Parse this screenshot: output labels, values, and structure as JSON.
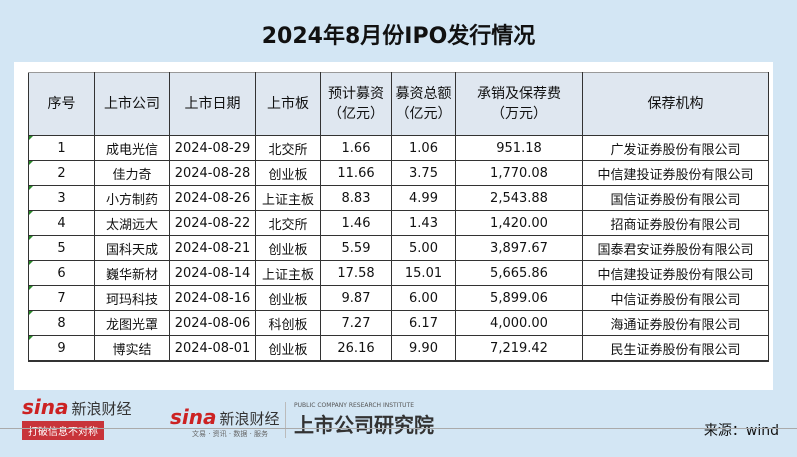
{
  "title": "2024年8月份IPO发行情况",
  "table": {
    "headers": [
      "序号",
      "上市公司",
      "上市日期",
      "上市板",
      "预计募资\n（亿元）",
      "募资总额\n（亿元）",
      "承销及保荐费\n（万元）",
      "保荐机构"
    ],
    "rows": [
      [
        "1",
        "成电光信",
        "2024-08-29",
        "北交所",
        "1.66",
        "1.06",
        "951.18",
        "广发证券股份有限公司"
      ],
      [
        "2",
        "佳力奇",
        "2024-08-28",
        "创业板",
        "11.66",
        "3.75",
        "1,770.08",
        "中信建投证券股份有限公司"
      ],
      [
        "3",
        "小方制药",
        "2024-08-26",
        "上证主板",
        "8.83",
        "4.99",
        "2,543.88",
        "国信证券股份有限公司"
      ],
      [
        "4",
        "太湖远大",
        "2024-08-22",
        "北交所",
        "1.46",
        "1.43",
        "1,420.00",
        "招商证券股份有限公司"
      ],
      [
        "5",
        "国科天成",
        "2024-08-21",
        "创业板",
        "5.59",
        "5.00",
        "3,897.67",
        "国泰君安证券股份有限公司"
      ],
      [
        "6",
        "巍华新材",
        "2024-08-14",
        "上证主板",
        "17.58",
        "15.01",
        "5,665.86",
        "中信建投证券股份有限公司"
      ],
      [
        "7",
        "珂玛科技",
        "2024-08-16",
        "创业板",
        "9.87",
        "6.00",
        "5,899.06",
        "中信证券股份有限公司"
      ],
      [
        "8",
        "龙图光罩",
        "2024-08-06",
        "科创板",
        "7.27",
        "6.17",
        "4,000.00",
        "海通证券股份有限公司"
      ],
      [
        "9",
        "博实结",
        "2024-08-01",
        "创业板",
        "26.16",
        "9.90",
        "7,219.42",
        "民生证券股份有限公司"
      ]
    ]
  },
  "footer": {
    "logo1_brand": "sina",
    "logo1_name": "新浪财经",
    "logo1_tag": "打破信息不对称",
    "logo2_brand": "sina",
    "logo2_name": "新浪财经",
    "logo2_sub": "文易 · 资讯 · 数据 · 服务",
    "institute": "上市公司研究院",
    "institute_en": "PUBLIC COMPANY RESEARCH INSTITUTE",
    "source": "来源：wind"
  }
}
